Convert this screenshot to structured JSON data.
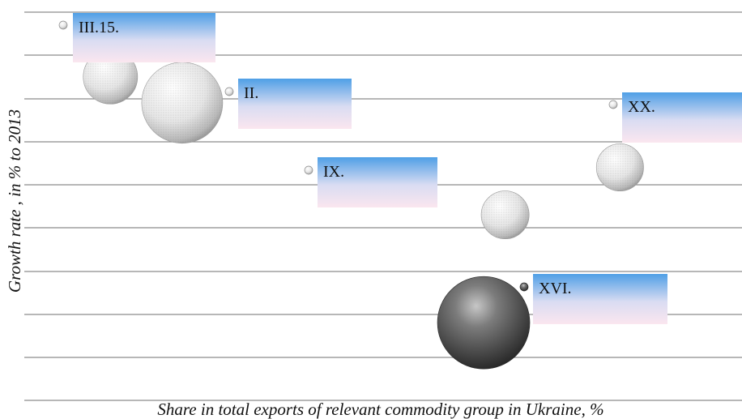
{
  "chart_data": {
    "type": "bubble",
    "title": "",
    "xlabel": "Share in total exports of relevant commodity group in Ukraine, %",
    "ylabel": "Growth rate , in % to 2013",
    "grid": true,
    "legend": "labels-next-to-markers",
    "series": [
      {
        "name": "III.15.",
        "bubbles": [
          {
            "x": 1.2,
            "y": 7.5,
            "size": 0.45
          },
          {
            "x": 2.2,
            "y": 6.9,
            "size": 1.0
          }
        ]
      },
      {
        "name": "II.",
        "bubbles": []
      },
      {
        "name": "IX.",
        "bubbles": [
          {
            "x": 6.7,
            "y": 4.3,
            "size": 0.35
          }
        ]
      },
      {
        "name": "XX.",
        "bubbles": [
          {
            "x": 8.3,
            "y": 5.4,
            "size": 0.34
          }
        ]
      },
      {
        "name": "XVI.",
        "bubbles": [
          {
            "x": 6.4,
            "y": 1.8,
            "size": 1.3
          }
        ]
      }
    ],
    "colors": {
      "light_bubble": "#e8e8e8",
      "dark_bubble": "#4a4a4a",
      "label_gradient_top": "#4f9fe6",
      "label_gradient_bottom": "#fbe4ee",
      "gridline": "#8c8c8c"
    }
  }
}
